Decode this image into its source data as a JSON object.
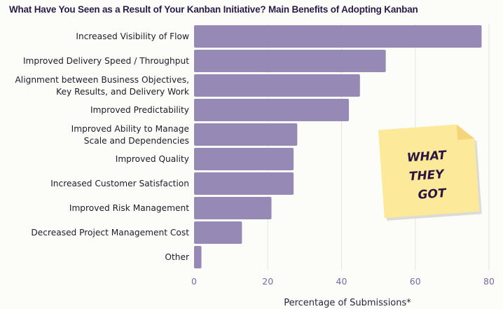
{
  "chart_data": {
    "type": "bar",
    "orientation": "horizontal",
    "title": "What Have You Seen as a Result of Your Kanban Initiative? Main Benefits of Adopting Kanban",
    "xlabel": "Percentage of Submissions*",
    "ylabel": "",
    "xlim": [
      0,
      80
    ],
    "xticks": [
      0,
      20,
      40,
      60,
      80
    ],
    "grid": true,
    "categories": [
      "Increased Visibility of Flow",
      "Improved Delivery Speed / Throughput",
      "Alignment between Business Objectives,\nKey Results, and Delivery Work",
      "Improved Predictability",
      "Improved Ability to Manage\nScale and Dependencies",
      "Improved Quality",
      "Increased Customer Satisfaction",
      "Improved Risk Management",
      "Decreased Project Management Cost",
      "Other"
    ],
    "values": [
      78,
      52,
      45,
      42,
      28,
      27,
      27,
      21,
      13,
      2
    ],
    "bar_color": "#9689b5",
    "annotation": {
      "sticky_note_lines": [
        "WHAT",
        "THEY",
        "GOT"
      ],
      "note_color": "#fde99a"
    }
  }
}
